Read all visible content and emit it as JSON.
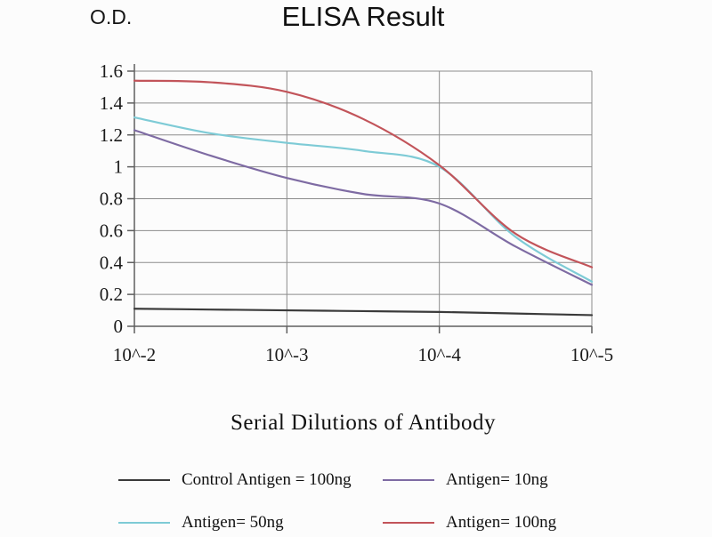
{
  "chart_data": {
    "type": "line",
    "title": "ELISA Result",
    "ylabel": "O.D.",
    "xlabel": "Serial Dilutions of Antibody",
    "x_tick_labels": [
      "10^-2",
      "10^-3",
      "10^-4",
      "10^-5"
    ],
    "x_values_decades": [
      0,
      0.5,
      1,
      1.5,
      2,
      2.5,
      3
    ],
    "ylim": [
      0,
      1.6
    ],
    "y_ticks": [
      0,
      0.2,
      0.4,
      0.6,
      0.8,
      1,
      1.2,
      1.4,
      1.6
    ],
    "y_tick_labels": [
      "0",
      "0.2",
      "0.4",
      "0.6",
      "0.8",
      "1",
      "1.2",
      "1.4",
      "1.6"
    ],
    "grid": true,
    "legend_position": "bottom",
    "colors": {
      "grid": "#8c8c8c",
      "axis": "#5f5f5f",
      "text": "#1a1a1a"
    },
    "series": [
      {
        "id": "control-antigen-100ng",
        "name": "Control Antigen = 100ng",
        "color": "#3a3a3a",
        "values": [
          0.11,
          0.105,
          0.1,
          0.095,
          0.09,
          0.08,
          0.07
        ]
      },
      {
        "id": "antigen-10ng",
        "name": "Antigen= 10ng",
        "color": "#7e6ba3",
        "values": [
          1.23,
          1.07,
          0.93,
          0.83,
          0.77,
          0.5,
          0.26
        ]
      },
      {
        "id": "antigen-50ng",
        "name": "Antigen= 50ng",
        "color": "#7ecbd6",
        "values": [
          1.31,
          1.21,
          1.15,
          1.1,
          1.0,
          0.56,
          0.28
        ]
      },
      {
        "id": "antigen-100ng",
        "name": "Antigen= 100ng",
        "color": "#c2545a",
        "values": [
          1.54,
          1.53,
          1.47,
          1.3,
          1.01,
          0.58,
          0.37
        ]
      }
    ]
  }
}
